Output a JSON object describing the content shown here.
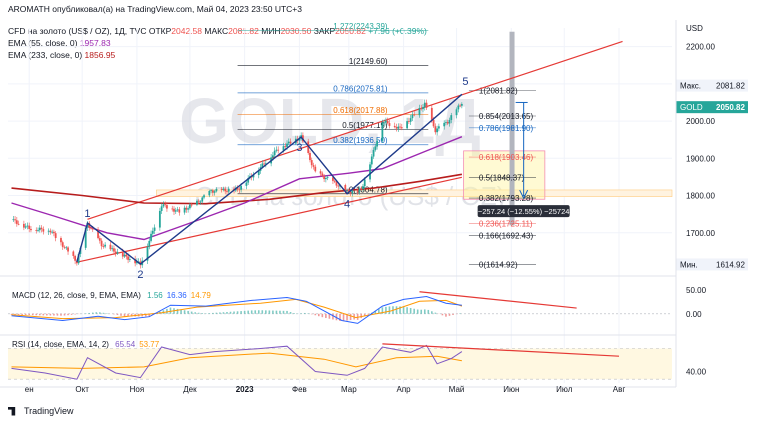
{
  "header": {
    "author_line": "AROMATH опубликовал(а) на TradingView.com, Май 04, 2023 23:50 UTC+3",
    "symbol_line": "CFD на золото (US$ / OZ), 1Д, TVC",
    "ohlc": [
      {
        "label": "ОТКР",
        "value": "2042.58"
      },
      {
        "label": "МАКС",
        "value": "2081.82"
      },
      {
        "label": "МИН",
        "value": "2030.50"
      },
      {
        "label": "ЗАКР",
        "value": "2050.82"
      }
    ],
    "change": "+7.96 (+0.39%)",
    "ema55": "EMA (55, close, 0)",
    "ema55_value": "1957.83",
    "ema233": "EMA (233, close, 0)",
    "ema233_value": "1856.95"
  },
  "colors": {
    "up": "#26a69a",
    "down": "#ef5350",
    "ema55": "#9c27b0",
    "ema233": "#b71c1c",
    "channel": "#e53935",
    "wave": "#1e3a8a",
    "fib": "#1565c0",
    "fib618": "#ef6c00",
    "macd": "#2962ff",
    "signal": "#ff9800",
    "rsi": "#7e57c2",
    "rsi_band": "#fff8e1"
  },
  "chart_data": {
    "type": "candlestick",
    "title": "CFD на золото (US$ / OZ), 1Д, TVC",
    "watermark": "GOLD, 1Д",
    "watermark_sub": "CFD на золото (US$ / OZ)",
    "x_range": [
      "2022-08-20",
      "2023-08-31"
    ],
    "ylim": [
      1600,
      2250
    ],
    "yaxis_unit": "USD",
    "yticks": [
      {
        "v": 2200,
        "t": "2200.00"
      },
      {
        "v": 2100,
        "t": "2100.00"
      },
      {
        "v": 2000,
        "t": "2000.00"
      },
      {
        "v": 1900,
        "t": "1900.00"
      },
      {
        "v": 1800,
        "t": "1800.00"
      },
      {
        "v": 1700,
        "t": "1700.00"
      }
    ],
    "xticks": [
      {
        "d": "2022-09-01",
        "t": "ен"
      },
      {
        "d": "2022-10-01",
        "t": "Окт"
      },
      {
        "d": "2022-11-01",
        "t": "Ноя"
      },
      {
        "d": "2022-12-01",
        "t": "Дек"
      },
      {
        "d": "2023-01-01",
        "t": "2023"
      },
      {
        "d": "2023-02-01",
        "t": "Фев"
      },
      {
        "d": "2023-03-01",
        "t": "Мар"
      },
      {
        "d": "2023-04-01",
        "t": "Апр"
      },
      {
        "d": "2023-05-01",
        "t": "Май"
      },
      {
        "d": "2023-06-01",
        "t": "Июн"
      },
      {
        "d": "2023-07-01",
        "t": "Июл"
      },
      {
        "d": "2023-08-01",
        "t": "Авг"
      }
    ],
    "price_path": [
      [
        "2022-08-22",
        1735
      ],
      [
        "2022-09-01",
        1712
      ],
      [
        "2022-09-13",
        1706
      ],
      [
        "2022-09-28",
        1622
      ],
      [
        "2022-10-04",
        1726
      ],
      [
        "2022-10-12",
        1668
      ],
      [
        "2022-10-21",
        1646
      ],
      [
        "2022-11-03",
        1616
      ],
      [
        "2022-11-10",
        1705
      ],
      [
        "2022-11-15",
        1775
      ],
      [
        "2022-11-25",
        1756
      ],
      [
        "2022-12-05",
        1781
      ],
      [
        "2022-12-13",
        1812
      ],
      [
        "2022-12-28",
        1816
      ],
      [
        "2023-01-10",
        1876
      ],
      [
        "2023-01-20",
        1926
      ],
      [
        "2023-02-02",
        1957
      ],
      [
        "2023-02-10",
        1862
      ],
      [
        "2023-02-21",
        1834
      ],
      [
        "2023-02-28",
        1810
      ],
      [
        "2023-03-08",
        1815
      ],
      [
        "2023-03-15",
        1918
      ],
      [
        "2023-03-20",
        2000
      ],
      [
        "2023-03-30",
        1980
      ],
      [
        "2023-04-13",
        2045
      ],
      [
        "2023-04-19",
        1975
      ],
      [
        "2023-04-26",
        1998
      ],
      [
        "2023-05-04",
        2050
      ]
    ],
    "ema55": [
      [
        "2022-08-22",
        1780
      ],
      [
        "2022-09-15",
        1745
      ],
      [
        "2022-10-15",
        1700
      ],
      [
        "2022-11-05",
        1682
      ],
      [
        "2022-12-01",
        1726
      ],
      [
        "2023-01-01",
        1780
      ],
      [
        "2023-02-01",
        1845
      ],
      [
        "2023-03-01",
        1860
      ],
      [
        "2023-03-20",
        1872
      ],
      [
        "2023-04-15",
        1922
      ],
      [
        "2023-05-04",
        1958
      ]
    ],
    "ema233": [
      [
        "2022-08-22",
        1820
      ],
      [
        "2022-10-01",
        1800
      ],
      [
        "2022-11-05",
        1780
      ],
      [
        "2022-12-10",
        1778
      ],
      [
        "2023-01-15",
        1790
      ],
      [
        "2023-02-15",
        1808
      ],
      [
        "2023-03-15",
        1820
      ],
      [
        "2023-04-10",
        1838
      ],
      [
        "2023-05-04",
        1857
      ]
    ],
    "channel_upper": [
      [
        "2022-10-04",
        1736
      ],
      [
        "2023-08-03",
        2214
      ]
    ],
    "channel_lower": [
      [
        "2022-09-28",
        1621
      ],
      [
        "2023-05-04",
        1849
      ]
    ],
    "wave_path": [
      [
        "2022-09-28",
        1622
      ],
      [
        "2022-10-04",
        1726
      ],
      [
        "2022-11-03",
        1616
      ],
      [
        "2023-02-02",
        1957
      ],
      [
        "2023-02-28",
        1805
      ],
      [
        "2023-05-04",
        2072
      ]
    ],
    "wave_labels": [
      {
        "d": "2022-10-04",
        "v": 1726,
        "t": "1",
        "pos": "above"
      },
      {
        "d": "2022-11-03",
        "v": 1616,
        "t": "2",
        "pos": "below"
      },
      {
        "d": "2023-02-01",
        "v": 1957,
        "t": "3",
        "pos": "below"
      },
      {
        "d": "2023-02-28",
        "v": 1805,
        "t": "4",
        "pos": "below"
      },
      {
        "d": "2023-05-06",
        "v": 2081,
        "t": "5",
        "pos": "above"
      }
    ],
    "fib_upper": {
      "d0": "2022-12-28",
      "d1": "2023-04-15",
      "levels": [
        {
          "v": 2243.39,
          "t": "1.272(2243.39)",
          "c": "#26a69a"
        },
        {
          "v": 2149.6,
          "t": "1(2149.60)",
          "c": "#131722"
        },
        {
          "v": 2075.81,
          "t": "0.786(2075.81)",
          "c": "#1565c0"
        },
        {
          "v": 2017.88,
          "t": "0.618(2017.88)",
          "c": "#ef6c00"
        },
        {
          "v": 1977.19,
          "t": "0.5(1977.19)",
          "c": "#131722"
        },
        {
          "v": 1936.5,
          "t": "0.382(1936.50)",
          "c": "#1565c0"
        },
        {
          "v": 1804.78,
          "t": "0(1804.78)",
          "c": "#131722"
        }
      ]
    },
    "fib_lower": {
      "d0": "2023-05-08",
      "d1": "2023-06-15",
      "levels": [
        {
          "v": 2081.82,
          "t": "1(2081.82)",
          "c": "#131722"
        },
        {
          "v": 2013.65,
          "t": "0.854(2013.65)",
          "c": "#131722"
        },
        {
          "v": 1981.9,
          "t": "0.786(1981.90)",
          "c": "#1565c0"
        },
        {
          "v": 1903.46,
          "t": "0.618(1903.46)",
          "c": "#ef5350"
        },
        {
          "v": 1848.37,
          "t": "0.5(1848.37)",
          "c": "#131722"
        },
        {
          "v": 1793.28,
          "t": "0.382(1793.28)",
          "c": "#131722"
        },
        {
          "v": 1725.11,
          "t": "0.236(1725.11)",
          "c": "#ef5350"
        },
        {
          "v": 1692.43,
          "t": "0.166(1692.43)",
          "c": "#131722"
        },
        {
          "v": 1614.92,
          "t": "0(1614.92)",
          "c": "#131722"
        }
      ]
    },
    "target_zone": {
      "d0": "2023-05-05",
      "d1": "2023-06-20",
      "top": 1920,
      "bottom": 1790
    },
    "target_band": {
      "d0": "2022-11-12",
      "d1": "2023-08-31",
      "top": 1815,
      "bottom": 1797
    },
    "projection": {
      "d": "2023-06-08",
      "from": 2050,
      "to": 1793,
      "label": "−257.24 (−12.55%) −25724"
    },
    "price_badges": [
      {
        "label": "Макс.",
        "v": 2081.82,
        "t": "2081.82",
        "style": "light"
      },
      {
        "label": "GOLD",
        "v": 2050.82,
        "t": "2050.82",
        "style": "green"
      },
      {
        "label": "Мин.",
        "v": 1614.92,
        "t": "1614.92",
        "style": "light"
      }
    ],
    "macd": {
      "label": "MACD (12, 26, close, 9, EMA, EMA)",
      "values": [
        "1.56",
        "16.36",
        "14.79"
      ],
      "ylim": [
        -40,
        60
      ],
      "yticks": [
        {
          "v": 50,
          "t": "50.00"
        },
        {
          "v": 0,
          "t": "0.00"
        }
      ],
      "macd_line": [
        [
          "2022-08-22",
          -4
        ],
        [
          "2022-09-20",
          -14
        ],
        [
          "2022-10-10",
          -5
        ],
        [
          "2022-10-25",
          -12
        ],
        [
          "2022-11-08",
          -6
        ],
        [
          "2022-11-20",
          18
        ],
        [
          "2022-12-10",
          16
        ],
        [
          "2023-01-05",
          28
        ],
        [
          "2023-01-25",
          34
        ],
        [
          "2023-02-05",
          26
        ],
        [
          "2023-02-25",
          -14
        ],
        [
          "2023-03-06",
          -20
        ],
        [
          "2023-03-20",
          16
        ],
        [
          "2023-04-01",
          30
        ],
        [
          "2023-04-14",
          36
        ],
        [
          "2023-04-25",
          22
        ],
        [
          "2023-05-04",
          18
        ]
      ],
      "signal_line": [
        [
          "2022-08-22",
          -2
        ],
        [
          "2022-09-20",
          -10
        ],
        [
          "2022-10-20",
          -8
        ],
        [
          "2022-11-15",
          2
        ],
        [
          "2022-12-05",
          14
        ],
        [
          "2023-01-10",
          22
        ],
        [
          "2023-01-30",
          30
        ],
        [
          "2023-02-15",
          14
        ],
        [
          "2023-03-05",
          -8
        ],
        [
          "2023-03-25",
          6
        ],
        [
          "2023-04-10",
          26
        ],
        [
          "2023-04-25",
          28
        ],
        [
          "2023-05-04",
          16
        ]
      ],
      "divergence": [
        [
          "2023-04-10",
          46
        ],
        [
          "2023-07-08",
          12
        ]
      ]
    },
    "rsi": {
      "label": "RSI (14, close, EMA, 14, 2)",
      "values": [
        "65.54",
        "53.77"
      ],
      "ylim": [
        25,
        85
      ],
      "band": [
        30,
        70
      ],
      "yticks": [
        {
          "v": 40,
          "t": "40.00"
        }
      ],
      "rsi_line": [
        [
          "2022-08-22",
          44
        ],
        [
          "2022-09-10",
          38
        ],
        [
          "2022-09-28",
          30
        ],
        [
          "2022-10-04",
          58
        ],
        [
          "2022-10-20",
          38
        ],
        [
          "2022-11-03",
          32
        ],
        [
          "2022-11-15",
          72
        ],
        [
          "2022-12-01",
          62
        ],
        [
          "2022-12-15",
          66
        ],
        [
          "2023-01-10",
          70
        ],
        [
          "2023-01-25",
          73
        ],
        [
          "2023-02-10",
          40
        ],
        [
          "2023-02-28",
          35
        ],
        [
          "2023-03-10",
          44
        ],
        [
          "2023-03-20",
          72
        ],
        [
          "2023-04-05",
          65
        ],
        [
          "2023-04-14",
          74
        ],
        [
          "2023-04-20",
          50
        ],
        [
          "2023-04-28",
          57
        ],
        [
          "2023-05-04",
          66
        ]
      ],
      "rsi_ma": [
        [
          "2022-08-22",
          46
        ],
        [
          "2022-10-01",
          44
        ],
        [
          "2022-11-05",
          46
        ],
        [
          "2022-12-01",
          58
        ],
        [
          "2023-01-15",
          64
        ],
        [
          "2023-02-15",
          56
        ],
        [
          "2023-03-05",
          46
        ],
        [
          "2023-03-28",
          58
        ],
        [
          "2023-04-20",
          60
        ],
        [
          "2023-05-04",
          54
        ]
      ],
      "divergence": [
        [
          "2023-03-20",
          76
        ],
        [
          "2023-08-01",
          60
        ]
      ]
    }
  },
  "footer": {
    "brand": "TradingView"
  }
}
